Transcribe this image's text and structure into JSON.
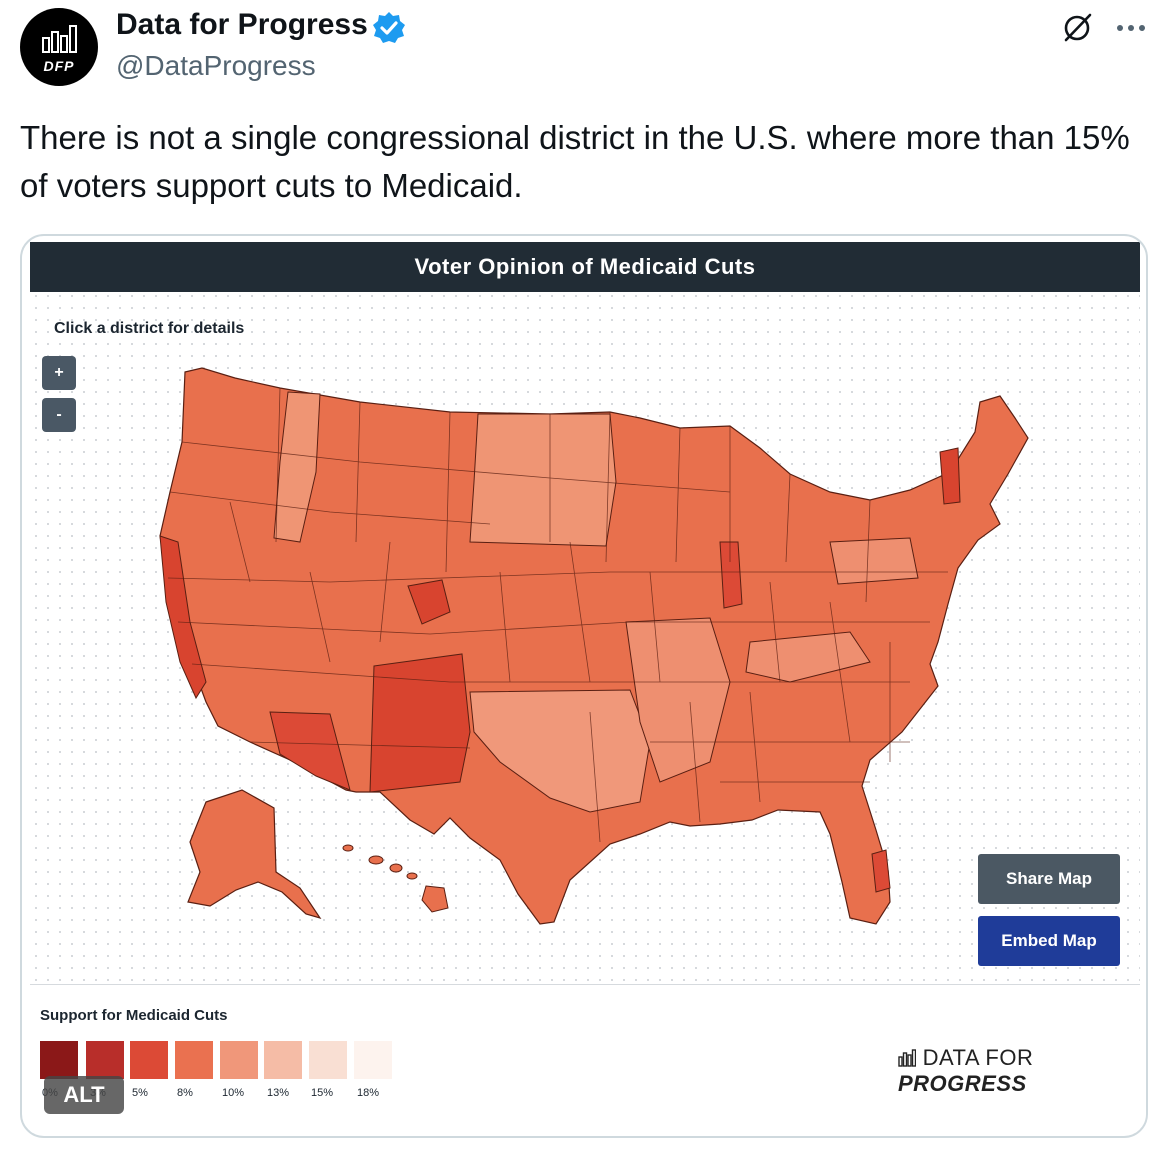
{
  "author": {
    "name": "Data for Progress",
    "handle": "@DataProgress",
    "avatar_text": "DFP"
  },
  "tweet": {
    "text": "There is not a single congressional district in the U.S. where more than 15% of voters support cuts to Medicaid."
  },
  "map": {
    "title": "Voter Opinion of Medicaid Cuts",
    "hint": "Click a district for details",
    "zoom_in_label": "+",
    "zoom_out_label": "-",
    "share_label": "Share Map",
    "embed_label": "Embed Map"
  },
  "legend": {
    "title": "Support for Medicaid Cuts",
    "items": [
      {
        "label": "0%",
        "color": "#8b1818"
      },
      {
        "label": "3%",
        "color": "#b82e2a"
      },
      {
        "label": "5%",
        "color": "#dc4a36"
      },
      {
        "label": "8%",
        "color": "#ea7150"
      },
      {
        "label": "10%",
        "color": "#f0977a"
      },
      {
        "label": "13%",
        "color": "#f5bca6"
      },
      {
        "label": "15%",
        "color": "#f9dfd3"
      },
      {
        "label": "18%",
        "color": "#fdf3ee"
      }
    ]
  },
  "brand": {
    "prefix": "DATA FOR ",
    "emphasis": "PROGRESS"
  },
  "alt_badge": "ALT",
  "icons": {
    "verified": "verified-badge-icon",
    "grok": "grok-icon",
    "more": "more-icon",
    "chart": "bar-chart-icon"
  },
  "colors": {
    "header_bg": "#212c35",
    "share_bg": "#4b5863",
    "embed_bg": "#1f3c99",
    "verified": "#1d9bf0"
  }
}
